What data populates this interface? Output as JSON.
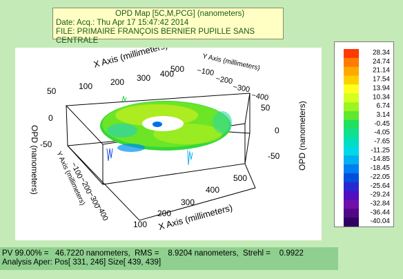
{
  "header": {
    "title": "OPD Map [5C,M,PCG]  (nanometers)",
    "date": "Date: Acq.: Thu Apr 17 15:47:42 2014",
    "file": "FILE: PRIMAIRE FRANÇOIS BERNIER PUPILLE SANS CENTRALE"
  },
  "plot": {
    "x_axis_label": "X Axis (millimeters)",
    "y_axis_label": "Y Axis (millimeters)",
    "z_axis_label": "OPD (nanometers)",
    "x_ticks_back": [
      "100",
      "200",
      "300",
      "400",
      "500"
    ],
    "x_ticks_front": [
      "100",
      "200",
      "300",
      "400",
      "500"
    ],
    "y_ticks_back": [
      "100",
      "200",
      "300",
      "400"
    ],
    "y_ticks_front": [
      "100",
      "200",
      "300",
      "400"
    ],
    "z_ticks_left": [
      "50",
      "0",
      "-50"
    ],
    "z_ticks_right": [
      "50",
      "0",
      "-50"
    ]
  },
  "colorbar": {
    "labels": [
      "28.34",
      "24.74",
      "21.14",
      "17.54",
      "13.94",
      "10.34",
      "6.74",
      "3.14",
      "-0.45",
      "-4.05",
      "-7.65",
      "-11.25",
      "-14.85",
      "-18.45",
      "-22.05",
      "-25.64",
      "-29.24",
      "-32.84",
      "-36.44",
      "-40.04"
    ],
    "colors": [
      "#ff3a00",
      "#ff7a00",
      "#ffa800",
      "#ffd000",
      "#ffff20",
      "#d4ff20",
      "#9cf520",
      "#5ee830",
      "#20e060",
      "#10e090",
      "#00e0c0",
      "#00d8e8",
      "#00b0f0",
      "#0080f0",
      "#0050e0",
      "#2828d0",
      "#5010c0",
      "#7010a8",
      "#500888",
      "#300060"
    ]
  },
  "footer": {
    "line1": "PV 99.00% =   46.7220 nanometers,  RMS =    8.9204 nanometers,  Strehl =    0.9922",
    "line2": "Analysis Aper: Pos[ 331, 246] Size[ 439, 439]"
  }
}
